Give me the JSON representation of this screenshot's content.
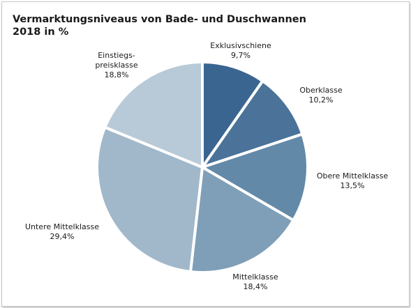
{
  "title": {
    "line1": "Vermarktungsniveaus von Bade- und Duschwannen",
    "line2": "2018 in %"
  },
  "chart_data": {
    "type": "pie",
    "title": "Vermarktungsniveaus von Bade- und Duschwannen 2018 in %",
    "unit": "%",
    "slices": [
      {
        "label": [
          "Exklusivschiene"
        ],
        "value": 9.7,
        "value_text": "9,7%",
        "color": "#3a6590"
      },
      {
        "label": [
          "Oberklasse"
        ],
        "value": 10.2,
        "value_text": "10,2%",
        "color": "#4b7399"
      },
      {
        "label": [
          "Obere Mittelklasse"
        ],
        "value": 13.5,
        "value_text": "13,5%",
        "color": "#6389a8"
      },
      {
        "label": [
          "Mittelklasse"
        ],
        "value": 18.4,
        "value_text": "18,4%",
        "color": "#7f9fb8"
      },
      {
        "label": [
          "Untere Mittelklasse"
        ],
        "value": 29.4,
        "value_text": "29,4%",
        "color": "#a1b8cb"
      },
      {
        "label": [
          "Einstiegs-",
          "preisklasse"
        ],
        "value": 18.8,
        "value_text": "18,8%",
        "color": "#b8cad8"
      }
    ]
  }
}
